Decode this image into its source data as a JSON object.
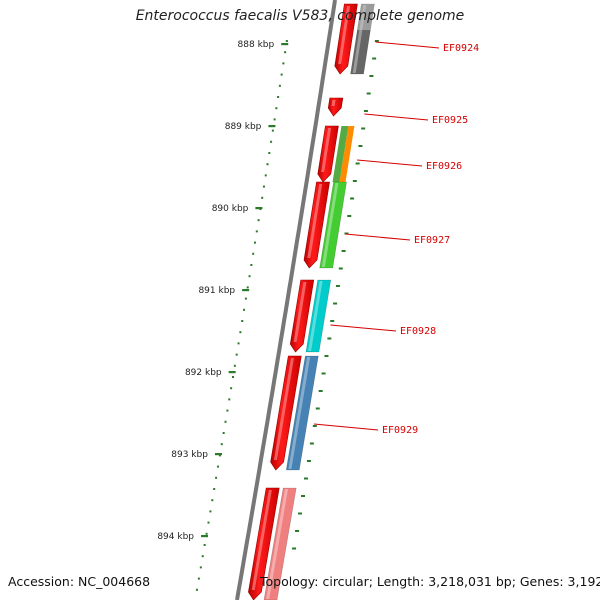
{
  "title": "Enterococcus faecalis V583, complete genome",
  "footer": {
    "accession": "Accession: NC_004668",
    "stats": "Topology: circular; Length: 3,218,031 bp; Genes: 3,192"
  },
  "colors": {
    "backbone": "#707070",
    "tick": "#2a7a2a",
    "cds": "#ee0000",
    "label": "#d40000"
  },
  "ticks": [
    {
      "label": "888 kbp"
    },
    {
      "label": "889 kbp"
    },
    {
      "label": "890 kbp"
    },
    {
      "label": "891 kbp"
    },
    {
      "label": "892 kbp"
    },
    {
      "label": "893 kbp"
    },
    {
      "label": "894 kbp"
    }
  ],
  "genes": [
    {
      "label": "EF0924",
      "cog_color": "#666666"
    },
    {
      "label": "EF0925",
      "cog_color": ""
    },
    {
      "label": "EF0926",
      "cog_color": "#55aa44"
    },
    {
      "label": "EF0927",
      "cog_color": "#44cc33"
    },
    {
      "label": "EF0928",
      "cog_color": "#00cccc"
    },
    {
      "label": "EF0929",
      "cog_color": "#4682b4"
    },
    {
      "label": "",
      "cog_color": "#f08080"
    }
  ]
}
